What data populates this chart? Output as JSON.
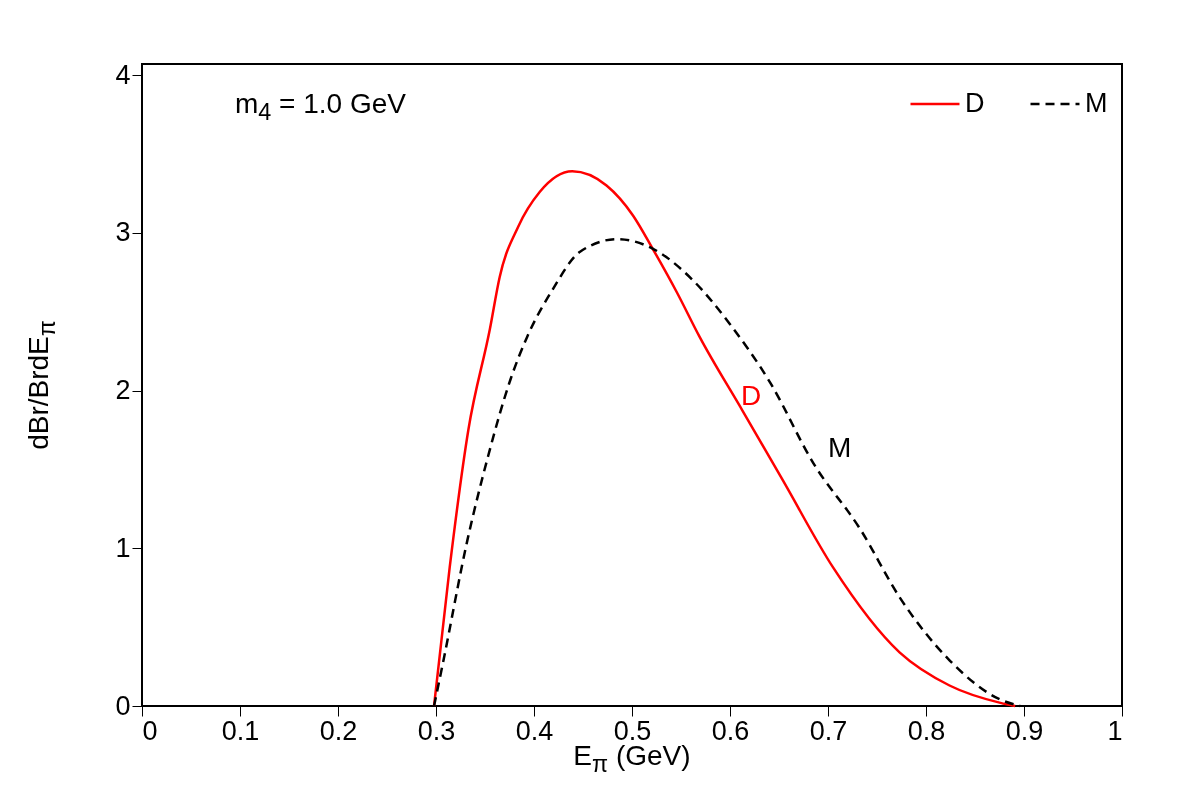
{
  "chart_data": {
    "type": "line",
    "xlabel": "E$_{π}$ (GeV)",
    "ylabel": "dBr/BrdE$_{π}$",
    "xlim": [
      0,
      1
    ],
    "xticks": [
      0,
      0.1,
      0.2,
      0.3,
      0.4,
      0.5,
      0.6,
      0.7,
      0.8,
      0.9,
      1
    ],
    "ylim": [
      0,
      4.07
    ],
    "yticks": [
      0,
      1,
      2,
      3,
      4
    ],
    "legend": "top right",
    "series": [
      {
        "name": "D",
        "color": "#ff0000",
        "line_style": "solid",
        "x": [
          0.298,
          0.314,
          0.333,
          0.355,
          0.365,
          0.384,
          0.406,
          0.439,
          0.474,
          0.501,
          0.521,
          0.546,
          0.569,
          0.613,
          0.654,
          0.705,
          0.773,
          0.824,
          0.876,
          0.891
        ],
        "values": [
          0,
          0.88,
          1.75,
          2.39,
          2.72,
          3.04,
          3.26,
          3.39,
          3.3,
          3.11,
          2.9,
          2.62,
          2.34,
          1.87,
          1.43,
          0.88,
          0.34,
          0.13,
          0.02,
          0
        ]
      },
      {
        "name": "M",
        "color": "#000000",
        "line_style": "dashed",
        "x": [
          0.298,
          0.307,
          0.332,
          0.353,
          0.376,
          0.393,
          0.419,
          0.447,
          0.485,
          0.521,
          0.562,
          0.6,
          0.641,
          0.685,
          0.733,
          0.773,
          0.824,
          0.876,
          0.896
        ],
        "values": [
          0,
          0.27,
          1.05,
          1.58,
          2.07,
          2.34,
          2.64,
          2.88,
          2.96,
          2.9,
          2.7,
          2.42,
          2.05,
          1.54,
          1.12,
          0.69,
          0.29,
          0.04,
          0
        ]
      }
    ],
    "annotations": [
      "m$_{4}$ = 1.0 GeV",
      "D",
      "M"
    ]
  }
}
